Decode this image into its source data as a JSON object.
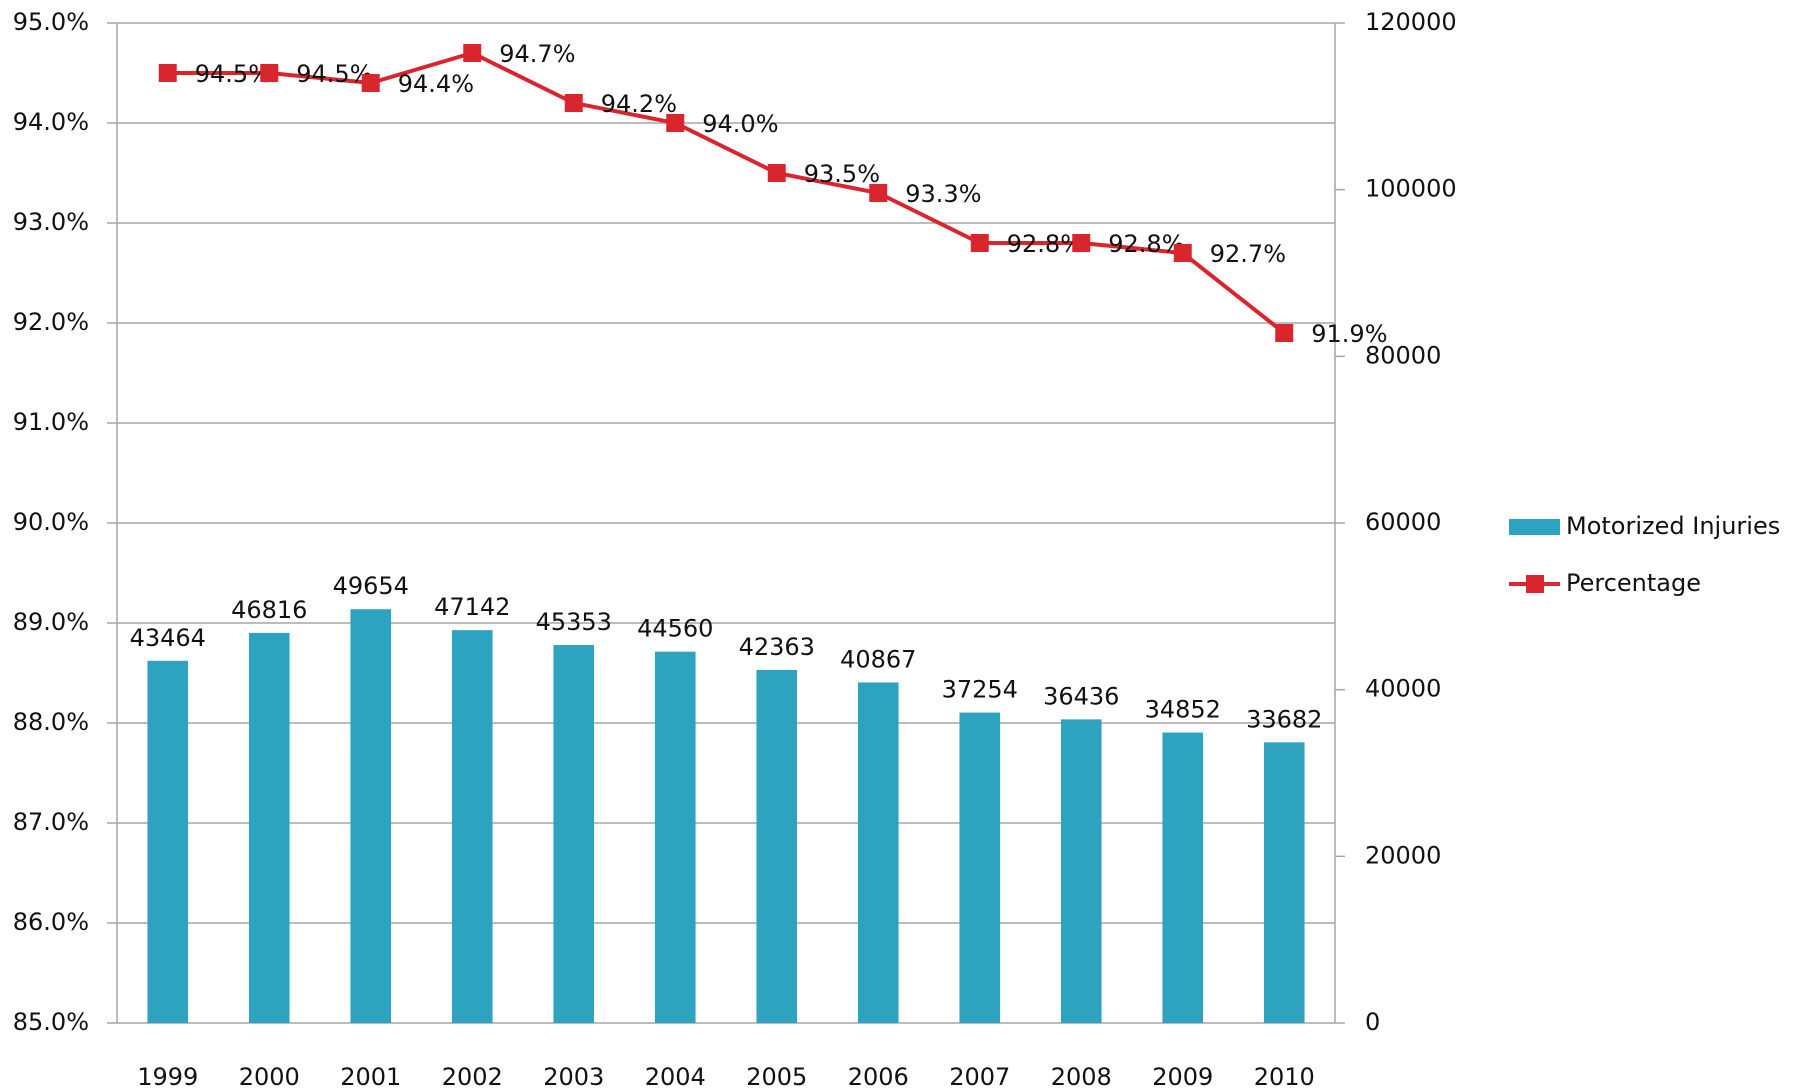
{
  "chart_data": {
    "type": "bar_line",
    "categories": [
      "1999",
      "2000",
      "2001",
      "2002",
      "2003",
      "2004",
      "2005",
      "2006",
      "2007",
      "2008",
      "2009",
      "2010"
    ],
    "series": [
      {
        "name": "Motorized Injuries",
        "type": "bar",
        "axis": "y2",
        "color": "#2ea3c0",
        "values": [
          43464,
          46816,
          49654,
          47142,
          45353,
          44560,
          42363,
          40867,
          37254,
          36436,
          34852,
          33682
        ]
      },
      {
        "name": "Percentage",
        "type": "line",
        "axis": "y",
        "color": "#d9262e",
        "values": [
          94.5,
          94.5,
          94.4,
          94.7,
          94.2,
          94.0,
          93.5,
          93.3,
          92.8,
          92.8,
          92.7,
          91.9
        ],
        "value_labels": [
          "94.5%",
          "94.5%",
          "94.4%",
          "94.7%",
          "94.2%",
          "94.0%",
          "93.5%",
          "93.3%",
          "92.8%",
          "92.8%",
          "92.7%",
          "91.9%"
        ]
      }
    ],
    "ylim": [
      85,
      95
    ],
    "yticks": [
      {
        "value": 85,
        "label": "85.0%"
      },
      {
        "value": 86,
        "label": "86.0%"
      },
      {
        "value": 87,
        "label": "87.0%"
      },
      {
        "value": 88,
        "label": "88.0%"
      },
      {
        "value": 89,
        "label": "89.0%"
      },
      {
        "value": 90,
        "label": "90.0%"
      },
      {
        "value": 91,
        "label": "91.0%"
      },
      {
        "value": 92,
        "label": "92.0%"
      },
      {
        "value": 93,
        "label": "93.0%"
      },
      {
        "value": 94,
        "label": "94.0%"
      },
      {
        "value": 95,
        "label": "95.0%"
      }
    ],
    "y2lim": [
      0,
      120000
    ],
    "y2ticks": [
      0,
      20000,
      40000,
      60000,
      80000,
      100000,
      120000
    ],
    "grid": true,
    "legend": "right"
  }
}
